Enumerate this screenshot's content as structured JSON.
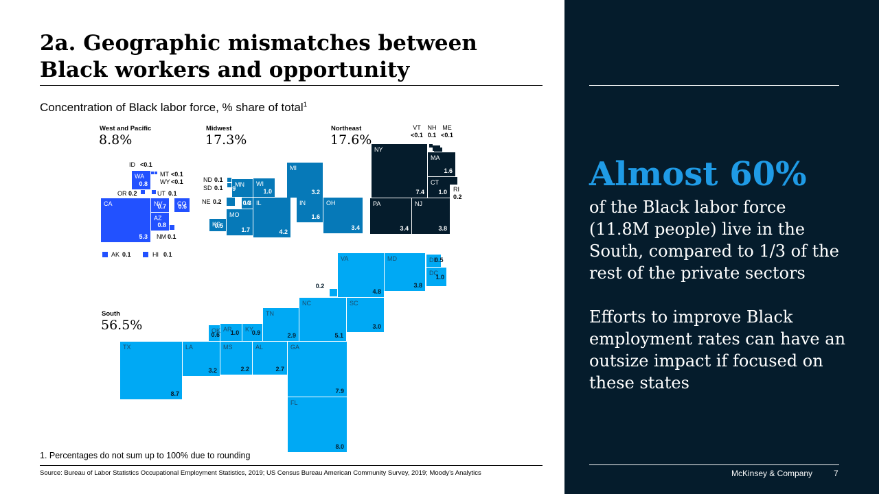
{
  "title": "2a. Geographic mismatches between Black workers and opportunity",
  "subtitle": "Concentration of Black labor force, % share of total",
  "subtitle_note_marker": "1",
  "footnote": "1.  Percentages do not sum up to 100% due to rounding",
  "source": "Source: Bureau of Labor Statistics Occupational Employment Statistics, 2019; US Census Bureau American Community Survey, 2019; Moody’s Analytics",
  "sidebar": {
    "headline": "Almost 60%",
    "text1": "of the Black labor force (11.8M people) live in the South, compared to 1/3 of the rest of the private sectors",
    "text2": "Efforts to improve Black employment rates can have an outsize impact if focused on these states"
  },
  "footer": {
    "brand": "McKinsey & Company",
    "page": "7"
  },
  "colors": {
    "west": "#2251ff",
    "midwest": "#0679b8",
    "northeast": "#051c2c",
    "south": "#00a9f4",
    "panel": "#051c2c",
    "accent": "#1f9be6"
  },
  "chart_data": {
    "type": "treemap-tile-map",
    "unit": "% share of Black labor force",
    "regions": [
      {
        "name": "West and Pacific",
        "total": "8.8%",
        "states": [
          {
            "code": "CA",
            "label": "5.3",
            "value": 5.3
          },
          {
            "code": "WA",
            "label": "0.8",
            "value": 0.8
          },
          {
            "code": "NV",
            "label": "0.7",
            "value": 0.7
          },
          {
            "code": "AZ",
            "label": "0.8",
            "value": 0.8
          },
          {
            "code": "CO",
            "label": "0.6",
            "value": 0.6
          },
          {
            "code": "OR",
            "label": "0.2",
            "value": 0.2
          },
          {
            "code": "UT",
            "label": "0.1",
            "value": 0.1
          },
          {
            "code": "NM",
            "label": "0.1",
            "value": 0.1
          },
          {
            "code": "ID",
            "label": "<0.1",
            "value": 0.05
          },
          {
            "code": "MT",
            "label": "<0.1",
            "value": 0.05
          },
          {
            "code": "WY",
            "label": "<0.1",
            "value": 0.05
          },
          {
            "code": "AK",
            "label": "0.1",
            "value": 0.1
          },
          {
            "code": "HI",
            "label": "0.1",
            "value": 0.1
          }
        ]
      },
      {
        "name": "Midwest",
        "total": "17.3%",
        "states": [
          {
            "code": "IL",
            "label": "4.2",
            "value": 4.2
          },
          {
            "code": "OH",
            "label": "3.4",
            "value": 3.4
          },
          {
            "code": "MI",
            "label": "3.2",
            "value": 3.2
          },
          {
            "code": "MO",
            "label": "1.7",
            "value": 1.7
          },
          {
            "code": "IN",
            "label": "1.6",
            "value": 1.6
          },
          {
            "code": "WI",
            "label": "1.0",
            "value": 1.0
          },
          {
            "code": "MN",
            "label": "0.9",
            "value": 0.9
          },
          {
            "code": "KS",
            "label": "0.5",
            "value": 0.5
          },
          {
            "code": "IA",
            "label": "0.3",
            "value": 0.3
          },
          {
            "code": "NE",
            "label": "0.2",
            "value": 0.2
          },
          {
            "code": "ND",
            "label": "0.1",
            "value": 0.1
          },
          {
            "code": "SD",
            "label": "0.1",
            "value": 0.1
          }
        ]
      },
      {
        "name": "Northeast",
        "total": "17.6%",
        "states": [
          {
            "code": "NY",
            "label": "7.4",
            "value": 7.4
          },
          {
            "code": "NJ",
            "label": "3.8",
            "value": 3.8
          },
          {
            "code": "PA",
            "label": "3.4",
            "value": 3.4
          },
          {
            "code": "MA",
            "label": "1.6",
            "value": 1.6
          },
          {
            "code": "CT",
            "label": "1.0",
            "value": 1.0
          },
          {
            "code": "RI",
            "label": "0.2",
            "value": 0.2
          },
          {
            "code": "NH",
            "label": "0.1",
            "value": 0.1
          },
          {
            "code": "VT",
            "label": "<0.1",
            "value": 0.05
          },
          {
            "code": "ME",
            "label": "<0.1",
            "value": 0.05
          }
        ]
      },
      {
        "name": "South",
        "total": "56.5%",
        "states": [
          {
            "code": "TX",
            "label": "8.7",
            "value": 8.7
          },
          {
            "code": "FL",
            "label": "8.0",
            "value": 8.0
          },
          {
            "code": "GA",
            "label": "7.9",
            "value": 7.9
          },
          {
            "code": "NC",
            "label": "5.1",
            "value": 5.1
          },
          {
            "code": "VA",
            "label": "4.8",
            "value": 4.8
          },
          {
            "code": "MD",
            "label": "3.8",
            "value": 3.8
          },
          {
            "code": "LA",
            "label": "3.2",
            "value": 3.2
          },
          {
            "code": "SC",
            "label": "3.0",
            "value": 3.0
          },
          {
            "code": "TN",
            "label": "2.9",
            "value": 2.9
          },
          {
            "code": "AL",
            "label": "2.7",
            "value": 2.7
          },
          {
            "code": "MS",
            "label": "2.2",
            "value": 2.2
          },
          {
            "code": "AR",
            "label": "1.0",
            "value": 1.0
          },
          {
            "code": "DC",
            "label": "1.0",
            "value": 1.0
          },
          {
            "code": "KY",
            "label": "0.9",
            "value": 0.9
          },
          {
            "code": "OK",
            "label": "0.6",
            "value": 0.6
          },
          {
            "code": "DE",
            "label": "0.5",
            "value": 0.5
          },
          {
            "code": "WV",
            "label": "0.2",
            "value": 0.2
          }
        ]
      }
    ]
  }
}
